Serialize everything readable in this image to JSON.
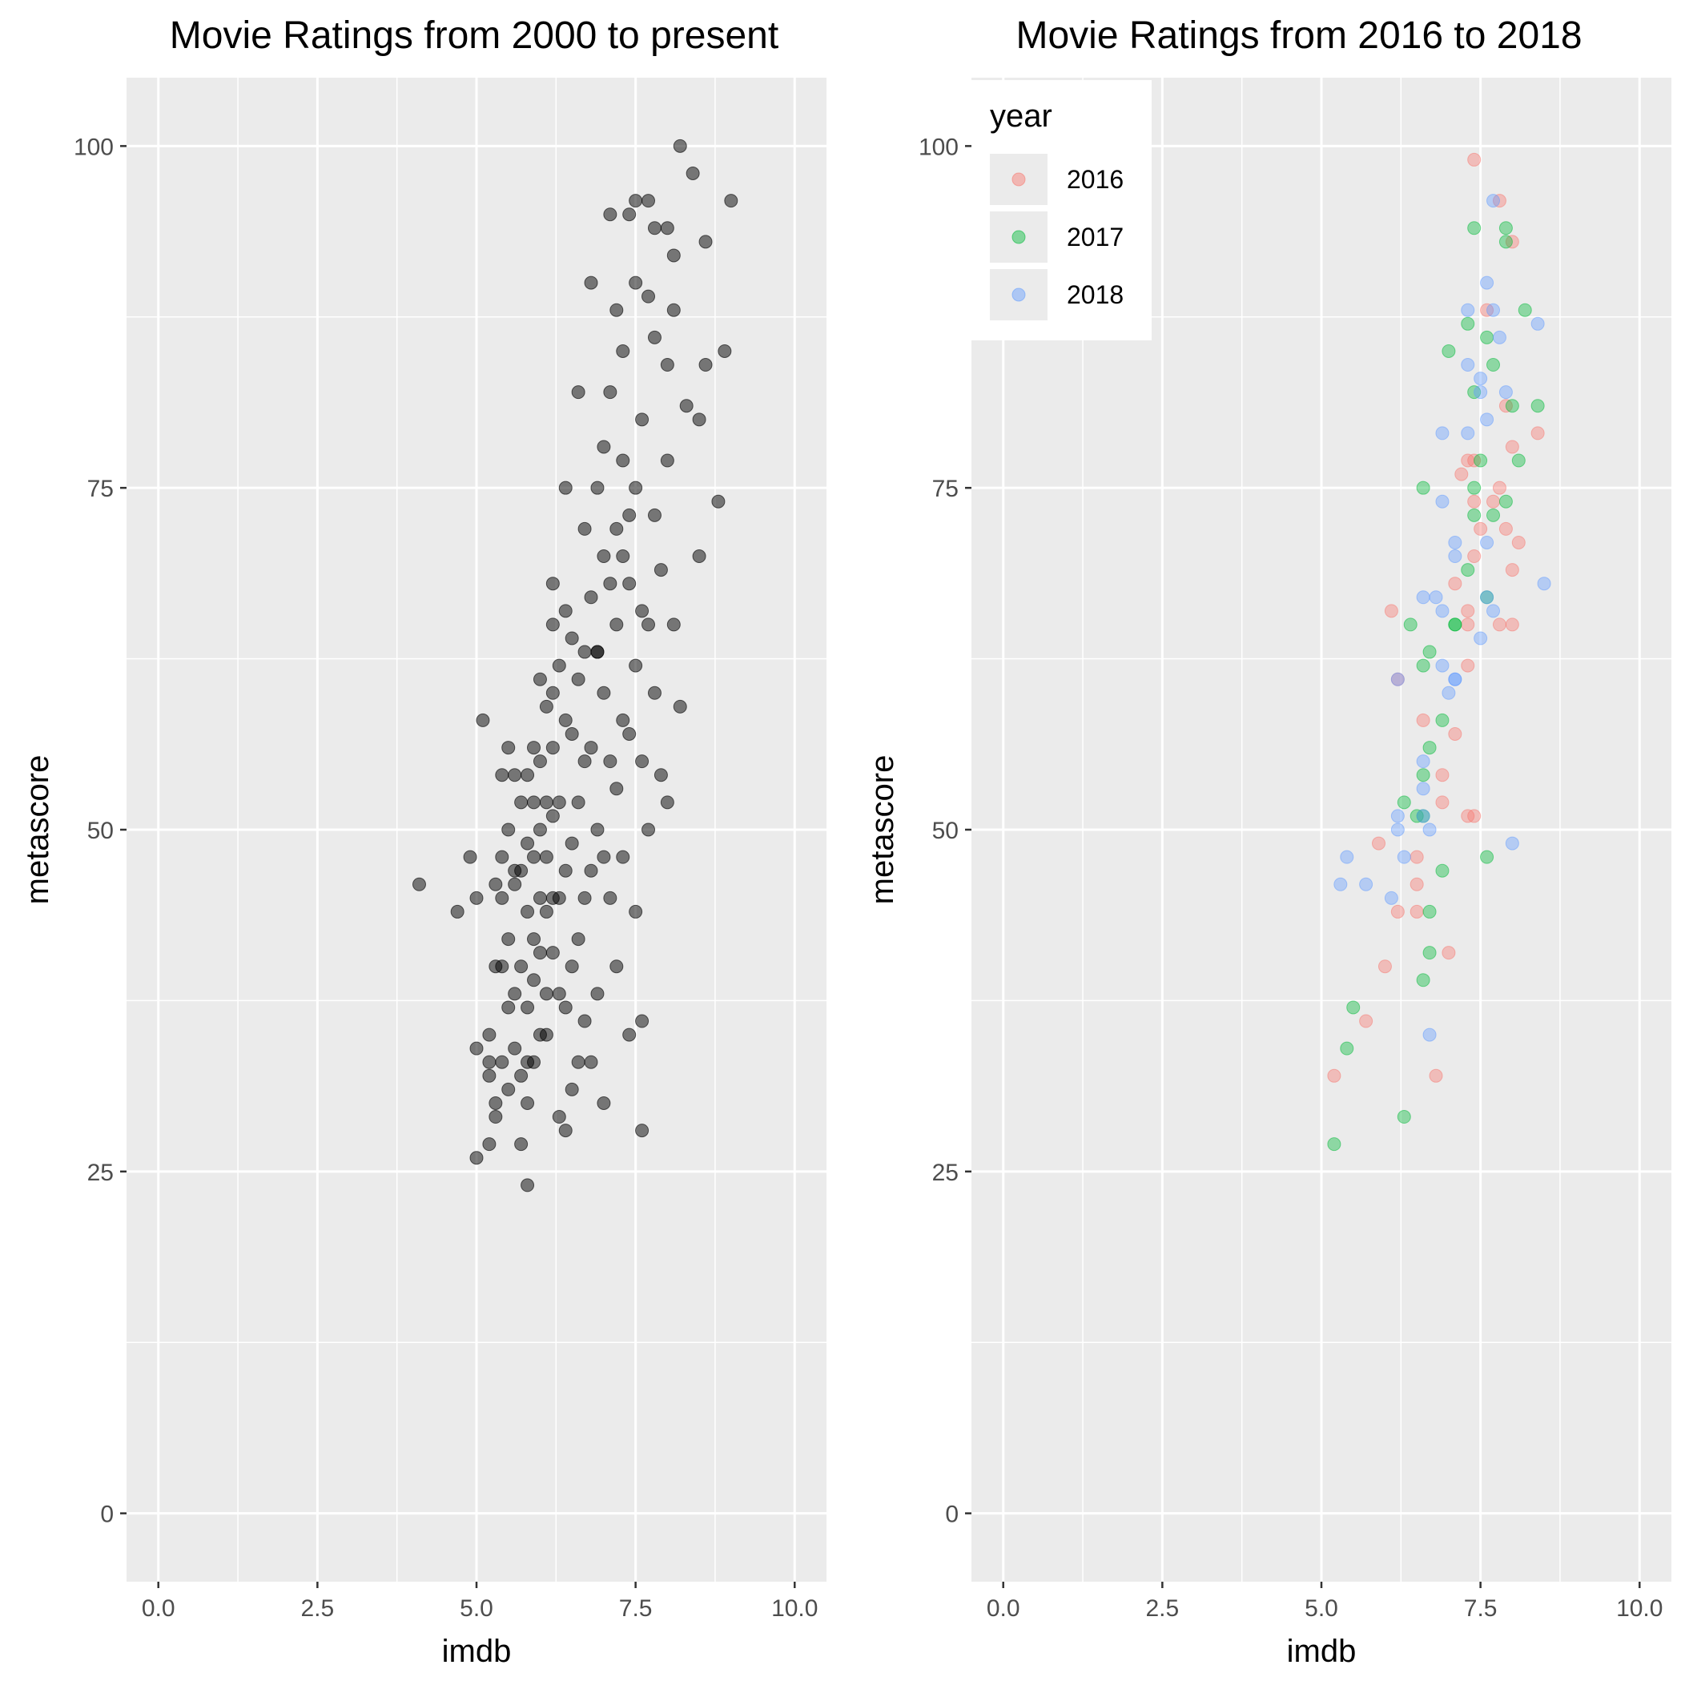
{
  "chart_data": [
    {
      "type": "scatter",
      "title": "Movie Ratings from 2000 to present",
      "xlabel": "imdb",
      "ylabel": "metascore",
      "xlim": [
        -0.5,
        10.5
      ],
      "ylim": [
        -5,
        105
      ],
      "xticks": [
        0,
        2.5,
        5,
        7.5,
        10
      ],
      "xtick_labels": [
        "0.0",
        "2.5",
        "5.0",
        "7.5",
        "10.0"
      ],
      "yticks": [
        0,
        25,
        50,
        75,
        100
      ],
      "ytick_labels": [
        "0",
        "25",
        "50",
        "75",
        "100"
      ],
      "grid": true,
      "colors": {
        "points": "#000000",
        "panel": "#ebebeb",
        "grid": "#ffffff"
      },
      "series": [
        {
          "x": [
            4.1,
            4.7,
            4.9,
            5.0,
            5.0,
            5.1,
            5.2,
            5.2,
            5.2,
            5.3,
            5.3,
            5.3,
            5.3,
            5.4,
            5.4,
            5.4,
            5.4,
            5.5,
            5.5,
            5.5,
            5.5,
            5.5,
            5.6,
            5.6,
            5.6,
            5.6,
            5.7,
            5.7,
            5.7,
            5.7,
            5.7,
            5.8,
            5.8,
            5.8,
            5.8,
            5.8,
            5.8,
            5.9,
            5.9,
            5.9,
            5.9,
            5.9,
            5.9,
            6.0,
            6.0,
            6.0,
            6.0,
            6.0,
            6.1,
            6.1,
            6.1,
            6.1,
            6.1,
            6.1,
            6.2,
            6.2,
            6.2,
            6.2,
            6.2,
            6.2,
            6.3,
            6.3,
            6.3,
            6.3,
            6.3,
            6.4,
            6.4,
            6.4,
            6.4,
            6.4,
            6.5,
            6.5,
            6.5,
            6.5,
            6.5,
            6.6,
            6.6,
            6.6,
            6.6,
            6.7,
            6.7,
            6.7,
            6.7,
            6.7,
            6.8,
            6.8,
            6.8,
            6.8,
            6.9,
            6.9,
            6.9,
            6.9,
            7.0,
            7.0,
            7.0,
            7.0,
            7.0,
            7.1,
            7.1,
            7.1,
            7.1,
            7.2,
            7.2,
            7.2,
            7.2,
            7.2,
            7.3,
            7.3,
            7.3,
            7.3,
            7.4,
            7.4,
            7.4,
            7.4,
            7.5,
            7.5,
            7.5,
            7.5,
            7.6,
            7.6,
            7.6,
            7.6,
            7.7,
            7.7,
            7.7,
            7.8,
            7.8,
            7.8,
            7.9,
            7.9,
            8.0,
            8.0,
            8.0,
            8.1,
            8.1,
            8.2,
            8.2,
            8.3,
            8.4,
            8.5,
            8.6,
            8.6,
            8.8,
            8.9,
            9.0,
            7.6,
            7.4,
            7.8,
            8.0,
            7.5,
            7.1,
            6.8,
            6.6,
            6.4,
            6.2,
            6.0,
            5.8,
            5.6,
            5.4,
            5.2,
            5.0,
            6.9,
            7.3,
            7.7,
            8.1,
            8.5
          ],
          "y": [
            46,
            44,
            48,
            45,
            34,
            58,
            27,
            32,
            35,
            29,
            46,
            30,
            40,
            33,
            45,
            48,
            54,
            31,
            37,
            42,
            50,
            56,
            34,
            38,
            46,
            54,
            27,
            32,
            40,
            47,
            52,
            24,
            30,
            33,
            37,
            44,
            49,
            33,
            39,
            42,
            48,
            52,
            56,
            35,
            41,
            45,
            50,
            55,
            35,
            38,
            44,
            48,
            52,
            59,
            41,
            45,
            51,
            56,
            60,
            65,
            29,
            38,
            45,
            52,
            62,
            28,
            37,
            47,
            58,
            66,
            31,
            40,
            49,
            57,
            64,
            33,
            42,
            52,
            61,
            36,
            45,
            55,
            63,
            72,
            33,
            47,
            56,
            67,
            38,
            50,
            63,
            75,
            30,
            48,
            60,
            70,
            78,
            45,
            55,
            68,
            82,
            40,
            53,
            65,
            72,
            88,
            48,
            58,
            70,
            85,
            35,
            57,
            68,
            95,
            44,
            62,
            75,
            90,
            28,
            36,
            55,
            80,
            50,
            65,
            96,
            60,
            73,
            86,
            54,
            69,
            94,
            52,
            77,
            65,
            88,
            100,
            59,
            81,
            98,
            70,
            93,
            84,
            74,
            85,
            96,
            66,
            73,
            94,
            84,
            96,
            95,
            90,
            82,
            75,
            68,
            61,
            54,
            47,
            40,
            33,
            26,
            63,
            77,
            89,
            92,
            80
          ],
          "opacity": 0.5
        }
      ]
    },
    {
      "type": "scatter",
      "title": "Movie Ratings from 2016 to 2018",
      "xlabel": "imdb",
      "ylabel": "metascore",
      "xlim": [
        -0.5,
        10.5
      ],
      "ylim": [
        -5,
        105
      ],
      "xticks": [
        0,
        2.5,
        5,
        7.5,
        10
      ],
      "xtick_labels": [
        "0.0",
        "2.5",
        "5.0",
        "7.5",
        "10.0"
      ],
      "yticks": [
        0,
        25,
        50,
        75,
        100
      ],
      "ytick_labels": [
        "0",
        "25",
        "50",
        "75",
        "100"
      ],
      "grid": true,
      "legend": {
        "title": "year",
        "position": "top-left"
      },
      "colors": {
        "panel": "#ebebeb",
        "grid": "#ffffff"
      },
      "series": [
        {
          "name": "2016",
          "color": "#f8766d",
          "x": [
            7.4,
            7.8,
            8.0,
            7.6,
            7.9,
            8.4,
            8.0,
            7.4,
            7.3,
            7.2,
            7.8,
            7.7,
            7.4,
            7.5,
            7.9,
            8.1,
            7.4,
            7.1,
            8.0,
            7.3,
            6.1,
            7.3,
            7.8,
            8.0,
            7.3,
            6.2,
            6.6,
            7.1,
            6.9,
            6.9,
            7.3,
            7.4,
            5.9,
            6.5,
            6.5,
            6.2,
            6.5,
            7.0,
            6.0,
            5.7,
            5.2,
            6.8
          ],
          "y": [
            99,
            96,
            93,
            88,
            81,
            79,
            78,
            77,
            77,
            76,
            75,
            74,
            74,
            72,
            72,
            71,
            70,
            68,
            69,
            66,
            66,
            65,
            65,
            65,
            62,
            61,
            58,
            57,
            54,
            52,
            51,
            51,
            49,
            48,
            46,
            44,
            44,
            41,
            40,
            36,
            32,
            32
          ]
        },
        {
          "name": "2017",
          "color": "#00ba38",
          "x": [
            7.4,
            7.9,
            7.9,
            8.2,
            7.0,
            7.6,
            7.3,
            7.4,
            7.7,
            8.0,
            8.4,
            7.5,
            8.1,
            7.4,
            6.6,
            7.9,
            7.4,
            7.7,
            7.3,
            7.6,
            7.1,
            6.4,
            7.1,
            6.7,
            6.6,
            6.9,
            6.7,
            6.6,
            6.3,
            6.5,
            6.6,
            7.6,
            6.9,
            6.7,
            6.7,
            6.6,
            5.5,
            5.4,
            6.3,
            5.2
          ],
          "y": [
            94,
            94,
            93,
            88,
            85,
            86,
            87,
            82,
            84,
            81,
            81,
            77,
            77,
            75,
            75,
            74,
            73,
            73,
            69,
            67,
            65,
            65,
            65,
            63,
            62,
            58,
            56,
            54,
            52,
            51,
            51,
            48,
            47,
            44,
            41,
            39,
            37,
            34,
            29,
            27
          ]
        },
        {
          "name": "2018",
          "color": "#619cff",
          "x": [
            7.7,
            7.6,
            7.3,
            7.7,
            8.4,
            7.8,
            7.3,
            7.5,
            7.5,
            7.9,
            7.6,
            6.9,
            7.3,
            6.9,
            7.1,
            7.6,
            7.1,
            8.5,
            6.6,
            6.8,
            7.6,
            6.9,
            7.7,
            7.5,
            6.2,
            6.9,
            7.1,
            7.1,
            7.0,
            6.6,
            6.6,
            6.2,
            6.6,
            6.2,
            6.7,
            8.0,
            5.4,
            6.3,
            5.3,
            5.7,
            6.1,
            6.7
          ],
          "y": [
            96,
            90,
            88,
            88,
            87,
            86,
            84,
            83,
            82,
            82,
            80,
            79,
            79,
            74,
            71,
            71,
            70,
            68,
            67,
            67,
            67,
            66,
            66,
            64,
            61,
            62,
            61,
            61,
            60,
            55,
            53,
            51,
            51,
            50,
            50,
            49,
            48,
            48,
            46,
            46,
            45,
            35
          ]
        }
      ],
      "opacity": 0.4
    }
  ]
}
